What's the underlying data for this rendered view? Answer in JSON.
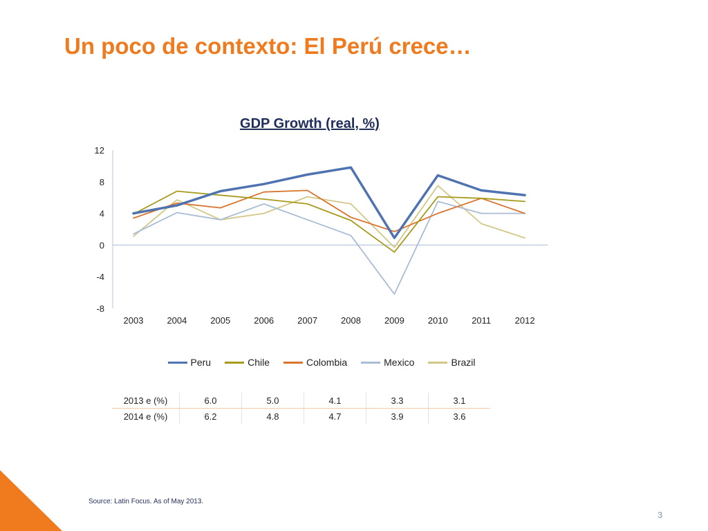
{
  "slide": {
    "title": "Un poco de contexto: El Perú crece…",
    "source": "Source: Latin Focus. As of May 2013.",
    "page_number": "3",
    "accent_color": "#f07a1e"
  },
  "chart_data": {
    "type": "line",
    "title": "GDP Growth (real, %)",
    "xlabel": "",
    "ylabel": "",
    "x": [
      "2003",
      "2004",
      "2005",
      "2006",
      "2007",
      "2008",
      "2009",
      "2010",
      "2011",
      "2012"
    ],
    "ylim": [
      -8,
      12
    ],
    "yticks": [
      12,
      8,
      4,
      0,
      -4,
      -8
    ],
    "grid": false,
    "legend_position": "bottom",
    "series": [
      {
        "name": "Peru",
        "color": "#4f73b0",
        "values": [
          4.0,
          5.0,
          6.8,
          7.7,
          8.9,
          9.8,
          0.9,
          8.8,
          6.9,
          6.3
        ]
      },
      {
        "name": "Chile",
        "color": "#a89a1c",
        "values": [
          3.9,
          6.8,
          6.3,
          5.8,
          5.2,
          3.1,
          -0.9,
          6.1,
          5.9,
          5.5
        ]
      },
      {
        "name": "Colombia",
        "color": "#d9742c",
        "values": [
          3.4,
          5.3,
          4.7,
          6.7,
          6.9,
          3.5,
          1.7,
          4.0,
          5.9,
          4.0
        ]
      },
      {
        "name": "Mexico",
        "color": "#a9bcd6",
        "values": [
          1.4,
          4.1,
          3.2,
          5.2,
          3.2,
          1.2,
          -6.2,
          5.5,
          4.0,
          4.0
        ]
      },
      {
        "name": "Brazil",
        "color": "#d1c887",
        "values": [
          1.1,
          5.7,
          3.2,
          4.0,
          6.1,
          5.2,
          -0.3,
          7.5,
          2.7,
          0.9
        ]
      }
    ]
  },
  "forecast_table": {
    "rows": [
      {
        "label": "2013 e (%)",
        "values": [
          "6.0",
          "5.0",
          "4.1",
          "3.3",
          "3.1"
        ]
      },
      {
        "label": "2014 e (%)",
        "values": [
          "6.2",
          "4.8",
          "4.7",
          "3.9",
          "3.6"
        ]
      }
    ]
  }
}
